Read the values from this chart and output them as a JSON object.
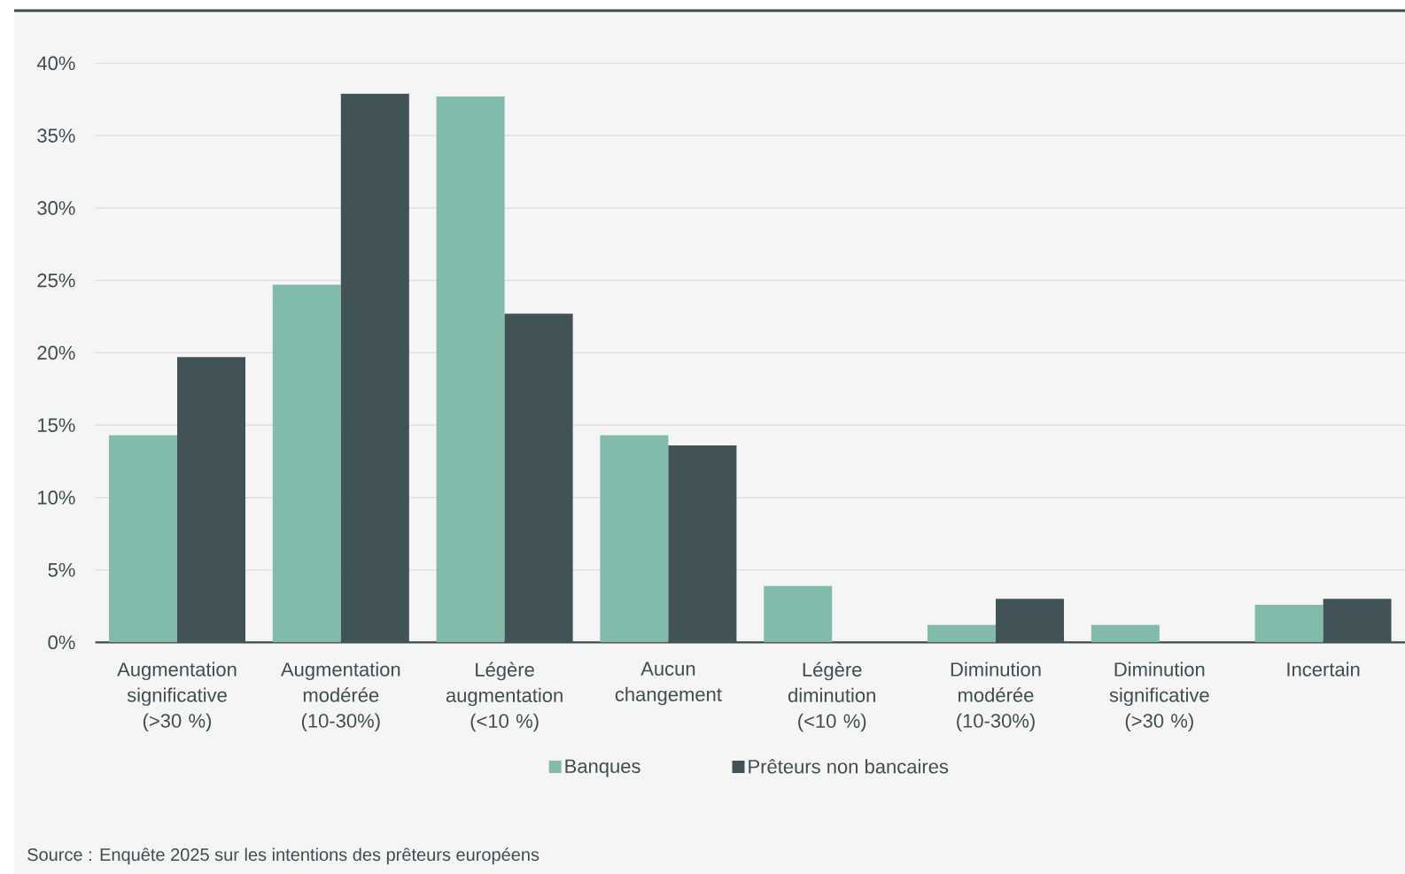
{
  "chart_data": {
    "type": "bar",
    "categories": [
      "Augmentation significative (>30 %)",
      "Augmentation modérée (10-30%)",
      "Légère augmentation (<10 %)",
      "Aucun changement",
      "Légère diminution (<10 %)",
      "Diminution modérée (10-30%)",
      "Diminution significative (>30 %)",
      "Incertain"
    ],
    "series": [
      {
        "name": "Banques",
        "color": "#82bbac",
        "values": [
          14.3,
          24.7,
          37.7,
          14.3,
          3.9,
          1.2,
          1.2,
          2.6
        ]
      },
      {
        "name": "Prêteurs non bancaires",
        "color": "#425357",
        "values": [
          19.7,
          37.9,
          22.7,
          13.6,
          0,
          3.0,
          0,
          3.0
        ]
      }
    ],
    "ylim": [
      0,
      40
    ],
    "yticks": [
      {
        "value": 0,
        "label": "0%"
      },
      {
        "value": 5,
        "label": "5%"
      },
      {
        "value": 10,
        "label": "10%"
      },
      {
        "value": 15,
        "label": "15%"
      },
      {
        "value": 20,
        "label": "20%"
      },
      {
        "value": 25,
        "label": "25%"
      },
      {
        "value": 30,
        "label": "30%"
      },
      {
        "value": 35,
        "label": "35%"
      },
      {
        "value": 40,
        "label": "40%"
      }
    ],
    "grid": "y",
    "legend": "bottom",
    "annotations": [
      "Source : Enquête 2025 sur les intentions des prêteurs européens"
    ]
  }
}
